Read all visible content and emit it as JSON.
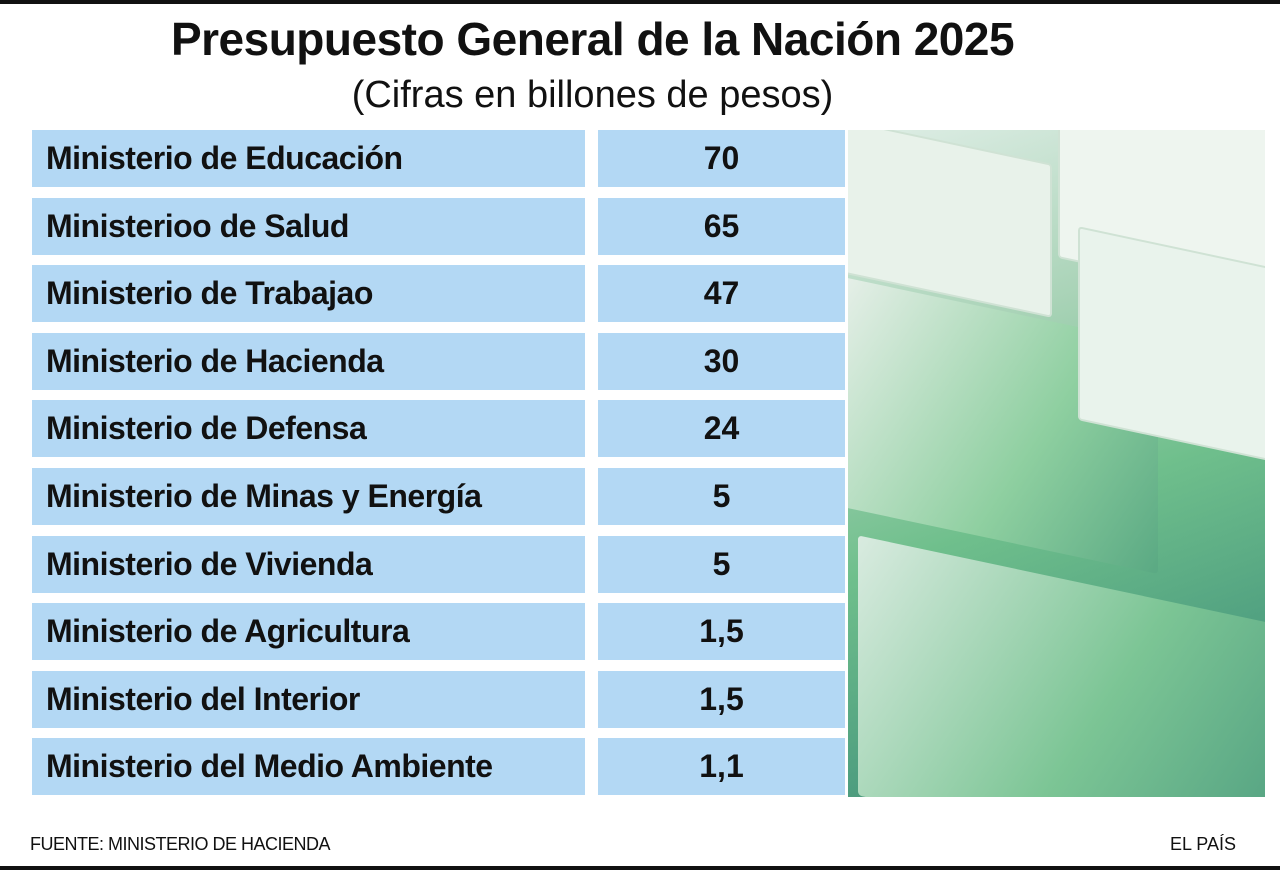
{
  "title": "Presupuesto General de la Nación 2025",
  "subtitle": "(Cifras en billones de pesos)",
  "chart_data": {
    "type": "table",
    "title": "Presupuesto General de la Nación 2025",
    "subtitle": "(Cifras en billones de pesos)",
    "rows": [
      {
        "label": "Ministerio de Educación",
        "value": "70"
      },
      {
        "label": "Ministerioo de Salud",
        "value": "65"
      },
      {
        "label": "Ministerio de Trabajao",
        "value": "47"
      },
      {
        "label": "Ministerio de Hacienda",
        "value": "30"
      },
      {
        "label": "Ministerio de Defensa",
        "value": "24"
      },
      {
        "label": "Ministerio de Minas y Energía",
        "value": "5"
      },
      {
        "label": "Ministerio de Vivienda",
        "value": "5"
      },
      {
        "label": "Ministerio de Agricultura",
        "value": "1,5"
      },
      {
        "label": "Ministerio del Interior",
        "value": "1,5"
      },
      {
        "label": "Ministerio del Medio Ambiente",
        "value": "1,1"
      }
    ]
  },
  "footer": {
    "source": "FUENTE: MINISTERIO DE HACIENDA",
    "brand": "EL PAÍS"
  },
  "colors": {
    "row_bg": "#b3d8f4",
    "text": "#111111"
  }
}
